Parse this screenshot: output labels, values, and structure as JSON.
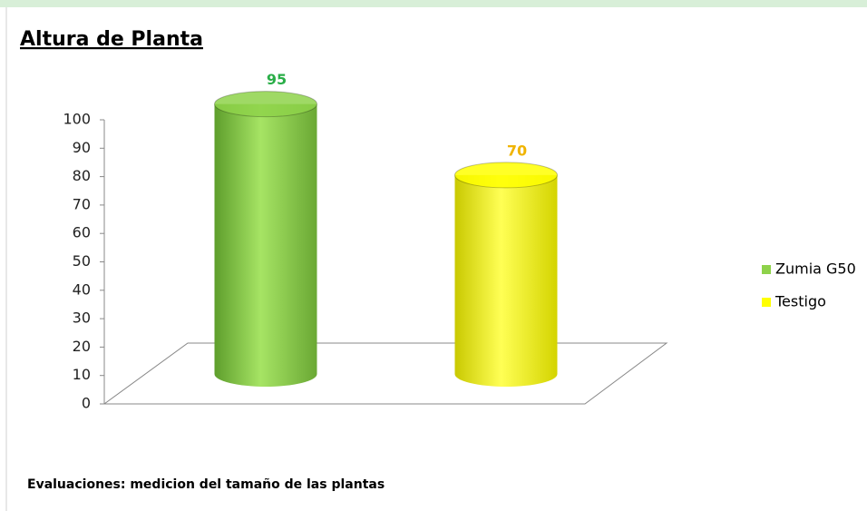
{
  "chart_data": {
    "type": "cylinder",
    "title": "Altura de Planta",
    "footnote": "Evaluaciones: medicion del tamaño de las plantas",
    "categories": [
      null
    ],
    "series": [
      {
        "name": "Zumia G50",
        "color": "#8ed24a",
        "values": [
          95
        ]
      },
      {
        "name": "Testigo",
        "color": "#ffff00",
        "values": [
          70
        ]
      }
    ],
    "ylim": [
      0,
      100
    ],
    "yticks": [
      0,
      10,
      20,
      30,
      40,
      50,
      60,
      70,
      80,
      90,
      100
    ],
    "grid": false,
    "legend": "right"
  }
}
